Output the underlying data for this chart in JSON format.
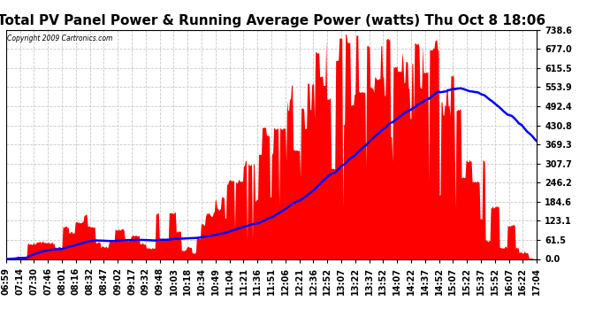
{
  "title": "Total PV Panel Power & Running Average Power (watts) Thu Oct 8 18:06",
  "copyright": "Copyright 2009 Cartronics.com",
  "y_max": 738.6,
  "y_ticks": [
    0.0,
    61.5,
    123.1,
    184.6,
    246.2,
    307.7,
    369.3,
    430.8,
    492.4,
    553.9,
    615.5,
    677.0,
    738.6
  ],
  "x_labels": [
    "06:59",
    "07:14",
    "07:30",
    "07:46",
    "08:01",
    "08:16",
    "08:32",
    "08:47",
    "09:02",
    "09:17",
    "09:32",
    "09:48",
    "10:03",
    "10:18",
    "10:34",
    "10:49",
    "11:04",
    "11:21",
    "11:36",
    "11:51",
    "12:06",
    "12:21",
    "12:36",
    "12:52",
    "13:07",
    "13:22",
    "13:37",
    "13:52",
    "14:07",
    "14:22",
    "14:37",
    "14:52",
    "15:07",
    "15:22",
    "15:37",
    "15:52",
    "16:07",
    "16:22",
    "17:04"
  ],
  "background_color": "#ffffff",
  "plot_bg_color": "#ffffff",
  "bar_color": "#ff0000",
  "line_color": "#0000ff",
  "grid_color": "#c8c8c8",
  "title_fontsize": 11,
  "tick_fontsize": 7,
  "figsize": [
    6.9,
    3.75
  ],
  "dpi": 100
}
